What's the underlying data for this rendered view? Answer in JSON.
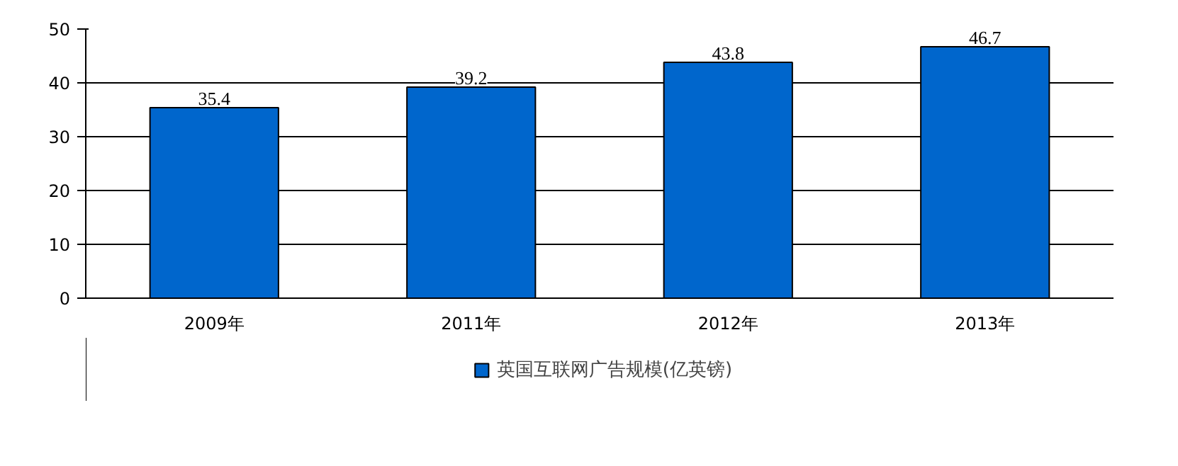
{
  "chart_data": {
    "type": "bar",
    "categories": [
      "2009年",
      "2011年",
      "2012年",
      "2013年"
    ],
    "series": [
      {
        "name": "英国互联网广告规模(亿英镑)",
        "color": "#0066cc",
        "values": [
          35.4,
          39.2,
          43.8,
          46.7
        ]
      }
    ],
    "ylim": [
      0,
      50
    ],
    "yticks": [
      0,
      10,
      20,
      30,
      40,
      50
    ],
    "grid": "y",
    "legend": "bottom",
    "data_labels": true
  }
}
